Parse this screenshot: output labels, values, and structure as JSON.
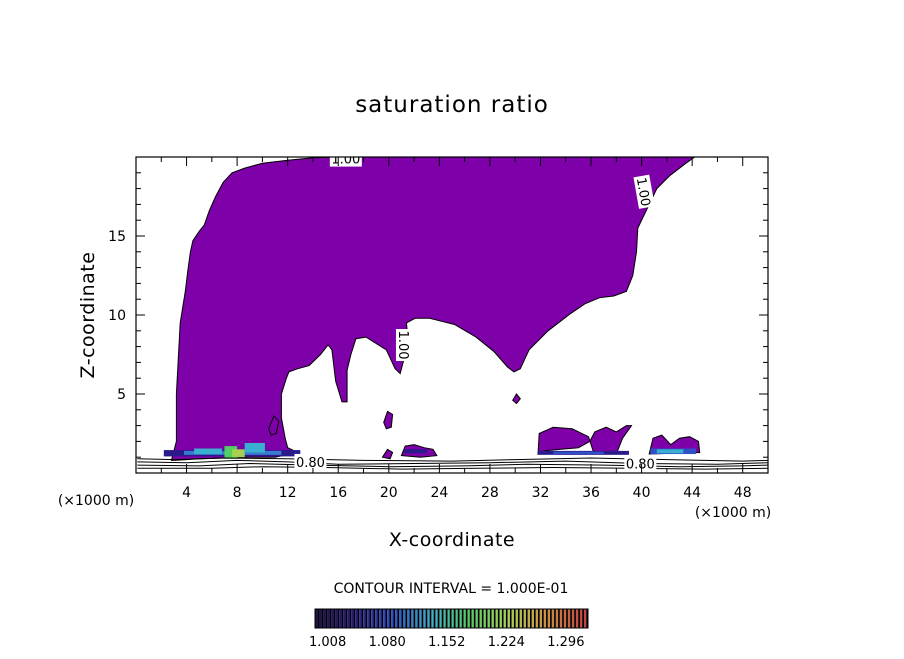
{
  "chart_data": {
    "type": "contour",
    "title": "saturation ratio",
    "xlabel": "X-coordinate",
    "ylabel": "Z-coordinate",
    "x_unit": "(×1000 m)",
    "xlim": [
      0,
      50
    ],
    "ylim": [
      0,
      20
    ],
    "x_ticks": [
      4,
      8,
      12,
      16,
      20,
      24,
      28,
      32,
      36,
      40,
      44,
      48
    ],
    "y_ticks": [
      5,
      10,
      15
    ],
    "contour_interval_text": "CONTOUR INTERVAL = 1.000E-01",
    "contour_labels": [
      {
        "text": "1.00",
        "x": 16.6,
        "z": 19.9,
        "rotate": 0
      },
      {
        "text": "1.00",
        "x": 40.2,
        "z": 17.8,
        "rotate": 80
      },
      {
        "text": "1.00",
        "x": 21.2,
        "z": 8.1,
        "rotate": 90
      },
      {
        "text": "0.80",
        "x": 13.8,
        "z": 0.7,
        "rotate": 0
      },
      {
        "text": "0.80",
        "x": 39.9,
        "z": 0.6,
        "rotate": 0
      }
    ],
    "colorbar": {
      "ticks": [
        1.008,
        1.08,
        1.152,
        1.224,
        1.296
      ],
      "tick_labels": [
        "1.008",
        "1.080",
        "1.152",
        "1.224",
        "1.296"
      ],
      "min": 1.0,
      "max": 1.33,
      "colors": [
        "#20104a",
        "#2a1a8c",
        "#3050c8",
        "#3ab0d0",
        "#50d060",
        "#a8d050",
        "#d09040",
        "#c84040"
      ]
    },
    "fill_color": "#7e00a8",
    "supersaturated_region": [
      [
        2.8,
        0.8
      ],
      [
        3.2,
        2.0
      ],
      [
        3.2,
        5.0
      ],
      [
        3.5,
        9.5
      ],
      [
        3.9,
        11.5
      ],
      [
        4.1,
        12.8
      ],
      [
        4.3,
        14.0
      ],
      [
        4.5,
        14.7
      ],
      [
        5.0,
        15.3
      ],
      [
        5.4,
        15.7
      ],
      [
        5.8,
        16.6
      ],
      [
        6.3,
        17.5
      ],
      [
        6.9,
        18.4
      ],
      [
        7.6,
        19.0
      ],
      [
        8.6,
        19.3
      ],
      [
        10.0,
        19.6
      ],
      [
        12.0,
        19.8
      ],
      [
        14.0,
        19.95
      ],
      [
        16.0,
        20.0
      ],
      [
        25.0,
        20.0
      ],
      [
        30.0,
        20.0
      ],
      [
        35.0,
        20.0
      ],
      [
        40.0,
        20.0
      ],
      [
        44.2,
        20.0
      ],
      [
        43.5,
        19.6
      ],
      [
        42.2,
        18.8
      ],
      [
        41.2,
        18.0
      ],
      [
        40.6,
        17.0
      ],
      [
        39.7,
        15.5
      ],
      [
        39.6,
        14.0
      ],
      [
        39.3,
        12.5
      ],
      [
        38.8,
        11.5
      ],
      [
        37.8,
        11.2
      ],
      [
        36.7,
        11.1
      ],
      [
        35.5,
        10.7
      ],
      [
        34.4,
        10.1
      ],
      [
        32.6,
        9.0
      ],
      [
        31.1,
        7.8
      ],
      [
        30.4,
        6.6
      ],
      [
        29.9,
        6.4
      ],
      [
        29.4,
        6.7
      ],
      [
        28.3,
        7.7
      ],
      [
        26.9,
        8.6
      ],
      [
        25.2,
        9.4
      ],
      [
        23.2,
        9.8
      ],
      [
        22.1,
        9.8
      ],
      [
        21.4,
        9.5
      ],
      [
        21.5,
        8.5
      ],
      [
        21.3,
        7.5
      ],
      [
        20.9,
        6.3
      ],
      [
        20.5,
        6.6
      ],
      [
        19.8,
        7.8
      ],
      [
        18.2,
        8.6
      ],
      [
        17.4,
        8.5
      ],
      [
        17.0,
        7.5
      ],
      [
        16.7,
        6.5
      ],
      [
        16.7,
        4.5
      ],
      [
        16.3,
        4.5
      ],
      [
        15.8,
        5.8
      ],
      [
        15.5,
        7.8
      ],
      [
        15.2,
        8.1
      ],
      [
        14.6,
        7.5
      ],
      [
        13.7,
        6.8
      ],
      [
        12.8,
        6.6
      ],
      [
        12.1,
        6.4
      ],
      [
        11.9,
        6.0
      ],
      [
        11.5,
        5.0
      ],
      [
        11.5,
        3.5
      ],
      [
        11.8,
        2.2
      ],
      [
        12.0,
        1.6
      ],
      [
        12.8,
        1.3
      ],
      [
        12.2,
        1.2
      ],
      [
        11.0,
        1.0
      ],
      [
        9.0,
        1.0
      ],
      [
        7.0,
        0.95
      ],
      [
        5.0,
        0.9
      ],
      [
        4.0,
        0.85
      ],
      [
        3.0,
        0.8
      ]
    ],
    "small_regions": [
      [
        [
          10.5,
          2.8
        ],
        [
          10.9,
          3.6
        ],
        [
          11.3,
          3.3
        ],
        [
          11.1,
          2.5
        ],
        [
          10.7,
          2.4
        ]
      ],
      [
        [
          19.6,
          3.2
        ],
        [
          19.9,
          3.9
        ],
        [
          20.3,
          3.7
        ],
        [
          20.2,
          2.9
        ],
        [
          19.8,
          2.8
        ]
      ],
      [
        [
          31.8,
          1.2
        ],
        [
          31.9,
          2.5
        ],
        [
          33.0,
          2.9
        ],
        [
          34.5,
          2.8
        ],
        [
          35.8,
          2.3
        ],
        [
          36.2,
          1.3
        ],
        [
          38.0,
          1.2
        ],
        [
          38.5,
          2.2
        ],
        [
          39.2,
          3.0
        ],
        [
          38.8,
          3.0
        ],
        [
          38.0,
          2.6
        ],
        [
          37.2,
          2.9
        ],
        [
          36.3,
          2.6
        ],
        [
          35.9,
          2.0
        ],
        [
          35.0,
          1.6
        ],
        [
          33.6,
          1.5
        ],
        [
          32.3,
          1.4
        ]
      ],
      [
        [
          40.6,
          1.2
        ],
        [
          40.9,
          2.2
        ],
        [
          41.6,
          2.4
        ],
        [
          42.3,
          1.8
        ],
        [
          43.0,
          2.2
        ],
        [
          43.8,
          2.3
        ],
        [
          44.5,
          2.0
        ],
        [
          44.6,
          1.3
        ]
      ],
      [
        [
          21.0,
          1.1
        ],
        [
          21.3,
          1.7
        ],
        [
          22.0,
          1.8
        ],
        [
          22.8,
          1.6
        ],
        [
          23.5,
          1.5
        ],
        [
          23.8,
          1.1
        ],
        [
          22.5,
          1.0
        ]
      ],
      [
        [
          29.8,
          4.6
        ],
        [
          30.1,
          5.0
        ],
        [
          30.4,
          4.7
        ],
        [
          30.1,
          4.4
        ]
      ],
      [
        [
          19.5,
          1.0
        ],
        [
          19.9,
          1.5
        ],
        [
          20.3,
          1.3
        ],
        [
          20.1,
          0.9
        ]
      ]
    ],
    "color_patches": [
      {
        "x0": 2.2,
        "x1": 13.0,
        "z0": 1.05,
        "z1": 1.45,
        "color": "#2a1a8c"
      },
      {
        "x0": 3.8,
        "x1": 11.5,
        "z0": 1.15,
        "z1": 1.4,
        "color": "#3a7ad0"
      },
      {
        "x0": 4.6,
        "x1": 6.8,
        "z0": 1.2,
        "z1": 1.55,
        "color": "#3ab0d0"
      },
      {
        "x0": 7.0,
        "x1": 8.0,
        "z0": 0.9,
        "z1": 1.7,
        "color": "#50d060"
      },
      {
        "x0": 7.6,
        "x1": 8.6,
        "z0": 1.0,
        "z1": 1.5,
        "color": "#a8d050"
      },
      {
        "x0": 8.6,
        "x1": 10.2,
        "z0": 1.3,
        "z1": 1.9,
        "color": "#3ab0d0"
      },
      {
        "x0": 21.2,
        "x1": 23.0,
        "z0": 1.25,
        "z1": 1.5,
        "color": "#2a1a8c"
      },
      {
        "x0": 31.8,
        "x1": 39.0,
        "z0": 1.15,
        "z1": 1.4,
        "color": "#2a1a8c"
      },
      {
        "x0": 33.0,
        "x1": 37.0,
        "z0": 1.2,
        "z1": 1.35,
        "color": "#3050c8"
      },
      {
        "x0": 40.7,
        "x1": 44.3,
        "z0": 1.2,
        "z1": 1.55,
        "color": "#3050c8"
      },
      {
        "x0": 41.2,
        "x1": 43.3,
        "z0": 1.25,
        "z1": 1.5,
        "color": "#3ab0d0"
      }
    ],
    "low_contours": [
      {
        "points": [
          [
            0.1,
            0.9
          ],
          [
            3,
            0.85
          ],
          [
            7,
            0.95
          ],
          [
            12,
            0.9
          ],
          [
            18,
            0.8
          ],
          [
            25,
            0.75
          ],
          [
            30,
            0.85
          ],
          [
            36,
            0.95
          ],
          [
            42,
            0.85
          ],
          [
            48,
            0.75
          ],
          [
            50,
            0.8
          ]
        ]
      },
      {
        "points": [
          [
            0.1,
            0.7
          ],
          [
            4,
            0.65
          ],
          [
            8,
            0.8
          ],
          [
            12,
            0.7
          ],
          [
            16,
            0.55
          ],
          [
            22,
            0.6
          ],
          [
            28,
            0.65
          ],
          [
            34,
            0.75
          ],
          [
            40,
            0.6
          ],
          [
            46,
            0.55
          ],
          [
            50,
            0.65
          ]
        ]
      },
      {
        "points": [
          [
            0.1,
            0.5
          ],
          [
            5,
            0.45
          ],
          [
            9,
            0.6
          ],
          [
            14,
            0.5
          ],
          [
            20,
            0.4
          ],
          [
            26,
            0.45
          ],
          [
            31,
            0.55
          ],
          [
            37,
            0.5
          ],
          [
            43,
            0.4
          ],
          [
            48,
            0.45
          ],
          [
            50,
            0.5
          ]
        ]
      },
      {
        "points": [
          [
            0.1,
            0.3
          ],
          [
            6,
            0.3
          ],
          [
            10,
            0.4
          ],
          [
            15,
            0.35
          ],
          [
            21,
            0.25
          ],
          [
            27,
            0.3
          ],
          [
            33,
            0.35
          ],
          [
            39,
            0.3
          ],
          [
            45,
            0.25
          ],
          [
            50,
            0.3
          ]
        ]
      }
    ]
  }
}
